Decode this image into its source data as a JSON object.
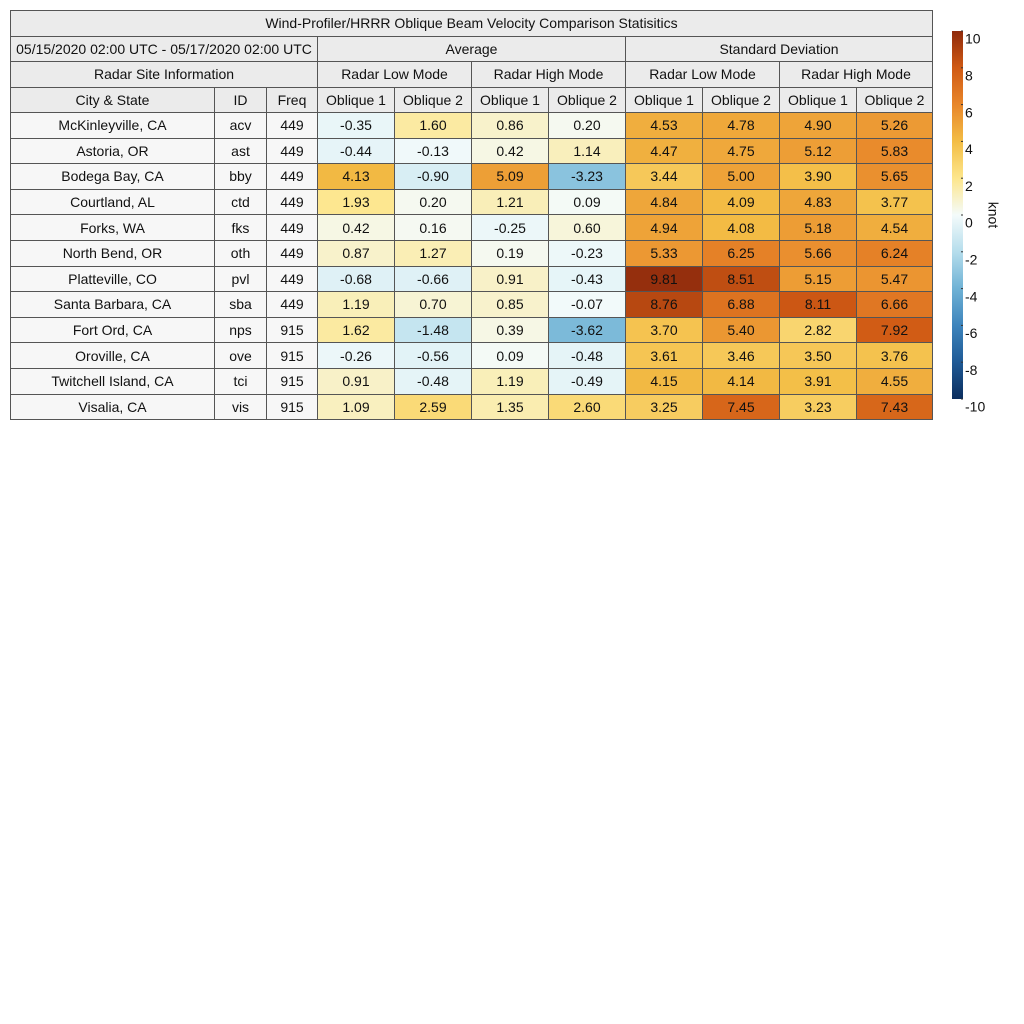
{
  "title": "Wind-Profiler/HRRR Oblique Beam Velocity Comparison Statisitics",
  "period": "05/15/2020 02:00 UTC - 05/17/2020 02:00 UTC",
  "groups": [
    "Average",
    "Standard Deviation"
  ],
  "site_info": "Radar Site Information",
  "modes": [
    "Radar Low Mode",
    "Radar High Mode",
    "Radar Low Mode",
    "Radar High Mode"
  ],
  "columns": [
    "City & State",
    "ID",
    "Freq",
    "Oblique 1",
    "Oblique 2",
    "Oblique 1",
    "Oblique 2",
    "Oblique 1",
    "Oblique 2",
    "Oblique 1",
    "Oblique 2"
  ],
  "rows": [
    [
      "McKinleyville, CA",
      "acv",
      "449",
      "-0.35",
      "1.60",
      "0.86",
      "0.20",
      "4.53",
      "4.78",
      "4.90",
      "5.26"
    ],
    [
      "Astoria, OR",
      "ast",
      "449",
      "-0.44",
      "-0.13",
      "0.42",
      "1.14",
      "4.47",
      "4.75",
      "5.12",
      "5.83"
    ],
    [
      "Bodega Bay, CA",
      "bby",
      "449",
      "4.13",
      "-0.90",
      "5.09",
      "-3.23",
      "3.44",
      "5.00",
      "3.90",
      "5.65"
    ],
    [
      "Courtland, AL",
      "ctd",
      "449",
      "1.93",
      "0.20",
      "1.21",
      "0.09",
      "4.84",
      "4.09",
      "4.83",
      "3.77"
    ],
    [
      "Forks, WA",
      "fks",
      "449",
      "0.42",
      "0.16",
      "-0.25",
      "0.60",
      "4.94",
      "4.08",
      "5.18",
      "4.54"
    ],
    [
      "North Bend, OR",
      "oth",
      "449",
      "0.87",
      "1.27",
      "0.19",
      "-0.23",
      "5.33",
      "6.25",
      "5.66",
      "6.24"
    ],
    [
      "Platteville, CO",
      "pvl",
      "449",
      "-0.68",
      "-0.66",
      "0.91",
      "-0.43",
      "9.81",
      "8.51",
      "5.15",
      "5.47"
    ],
    [
      "Santa Barbara, CA",
      "sba",
      "449",
      "1.19",
      "0.70",
      "0.85",
      "-0.07",
      "8.76",
      "6.88",
      "8.11",
      "6.66"
    ],
    [
      "Fort Ord, CA",
      "nps",
      "915",
      "1.62",
      "-1.48",
      "0.39",
      "-3.62",
      "3.70",
      "5.40",
      "2.82",
      "7.92"
    ],
    [
      "Oroville, CA",
      "ove",
      "915",
      "-0.26",
      "-0.56",
      "0.09",
      "-0.48",
      "3.61",
      "3.46",
      "3.50",
      "3.76"
    ],
    [
      "Twitchell Island, CA",
      "tci",
      "915",
      "0.91",
      "-0.48",
      "1.19",
      "-0.49",
      "4.15",
      "4.14",
      "3.91",
      "4.55"
    ],
    [
      "Visalia, CA",
      "vis",
      "915",
      "1.09",
      "2.59",
      "1.35",
      "2.60",
      "3.25",
      "7.45",
      "3.23",
      "7.43"
    ]
  ],
  "colorbar": {
    "label": "knot",
    "range": [
      -10,
      10
    ],
    "ticks": [
      10,
      8,
      6,
      4,
      2,
      0,
      -2,
      -4,
      -6,
      -8,
      -10
    ],
    "colors": [
      "#0b2e5e",
      "#1f5a96",
      "#3d84bc",
      "#6fb2d5",
      "#b5ddec",
      "#f4fbfb",
      "#fde68c",
      "#f3bd45",
      "#e8862a",
      "#d05a14",
      "#8f2a0c"
    ]
  }
}
